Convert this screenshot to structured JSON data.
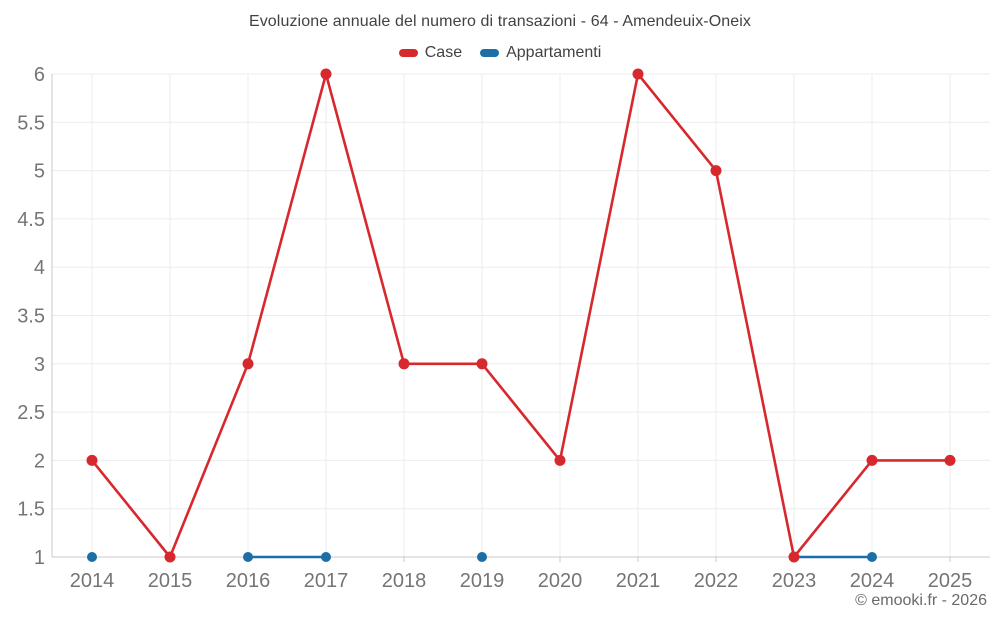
{
  "footer": "© emooki.fr - 2026",
  "colors": {
    "case_red": "#d7282e",
    "appartamenti_blue": "#1b6fa6",
    "grid": "#ececec",
    "axis": "#c9c9c9",
    "tick_label": "#757575",
    "title_text": "#424242",
    "footer_text": "#696969"
  },
  "chart_data": {
    "type": "line",
    "title": "Evoluzione annuale del numero di transazioni - 64 - Amendeuix-Oneix",
    "x": [
      "2014",
      "2015",
      "2016",
      "2017",
      "2018",
      "2019",
      "2020",
      "2021",
      "2022",
      "2023",
      "2024",
      "2025"
    ],
    "series": [
      {
        "name": "Case",
        "color": "#d7282e",
        "values": [
          2,
          1,
          3,
          6,
          3,
          3,
          2,
          6,
          5,
          1,
          2,
          2
        ]
      },
      {
        "name": "Appartamenti",
        "color": "#1b6fa6",
        "values": [
          1,
          null,
          1,
          1,
          null,
          1,
          null,
          null,
          null,
          1,
          1,
          null
        ]
      }
    ],
    "ylim": [
      1,
      6
    ],
    "yticks": [
      1,
      1.5,
      2,
      2.5,
      3,
      3.5,
      4,
      4.5,
      5,
      5.5,
      6
    ],
    "ytick_labels": [
      "1",
      "1.5",
      "2",
      "2.5",
      "3",
      "3.5",
      "4",
      "4.5",
      "5",
      "5.5",
      "6"
    ],
    "xlabel": "",
    "ylabel": "",
    "grid": true,
    "legend_position": "top"
  }
}
